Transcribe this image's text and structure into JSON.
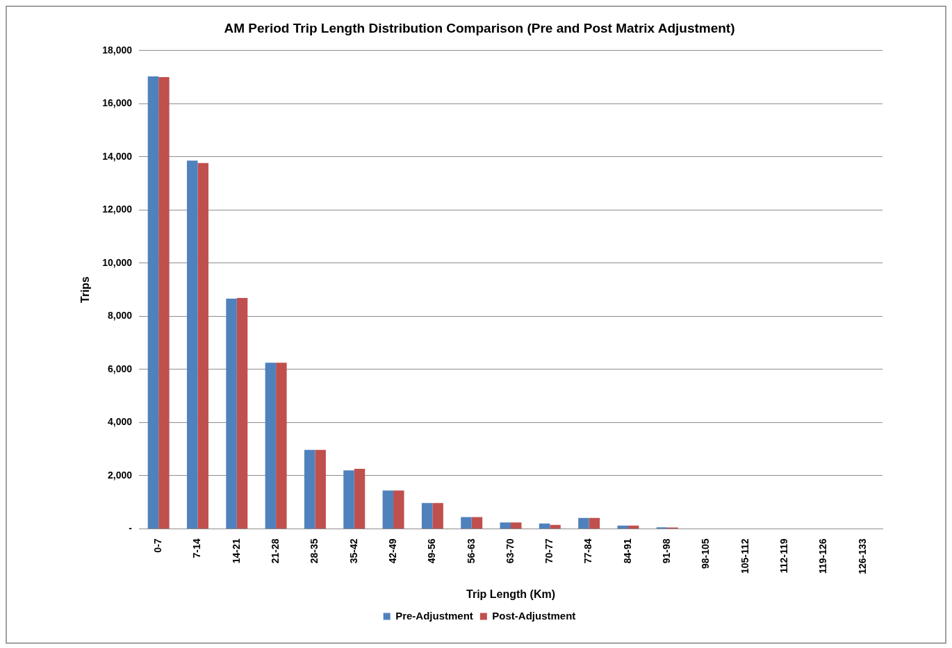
{
  "chart_data": {
    "type": "bar",
    "title": "AM Period Trip Length Distribution Comparison (Pre and Post Matrix Adjustment)",
    "xlabel": "Trip Length (Km)",
    "ylabel": "Trips",
    "categories": [
      "0-7",
      "7-14",
      "14-21",
      "21-28",
      "28-35",
      "35-42",
      "42-49",
      "49-56",
      "56-63",
      "63-70",
      "70-77",
      "77-84",
      "84-91",
      "91-98",
      "98-105",
      "105-112",
      "112-119",
      "119-126",
      "126-133"
    ],
    "series": [
      {
        "name": "Pre-Adjustment",
        "color": "#4f81bd",
        "values": [
          17030,
          13860,
          8660,
          6250,
          2970,
          2200,
          1440,
          970,
          440,
          240,
          200,
          410,
          120,
          60,
          0,
          0,
          0,
          0,
          0
        ]
      },
      {
        "name": "Post-Adjustment",
        "color": "#c0504d",
        "values": [
          17000,
          13770,
          8690,
          6250,
          2970,
          2260,
          1440,
          970,
          440,
          240,
          150,
          410,
          120,
          50,
          0,
          0,
          0,
          0,
          0
        ]
      }
    ],
    "ylim": [
      0,
      18000
    ],
    "yticks": [
      {
        "value": 0,
        "label": "-"
      },
      {
        "value": 2000,
        "label": "2,000"
      },
      {
        "value": 4000,
        "label": "4,000"
      },
      {
        "value": 6000,
        "label": "6,000"
      },
      {
        "value": 8000,
        "label": "8,000"
      },
      {
        "value": 10000,
        "label": "10,000"
      },
      {
        "value": 12000,
        "label": "12,000"
      },
      {
        "value": 14000,
        "label": "14,000"
      },
      {
        "value": 16000,
        "label": "16,000"
      },
      {
        "value": 18000,
        "label": "18,000"
      }
    ],
    "grid": "y",
    "legend": "bottom"
  }
}
